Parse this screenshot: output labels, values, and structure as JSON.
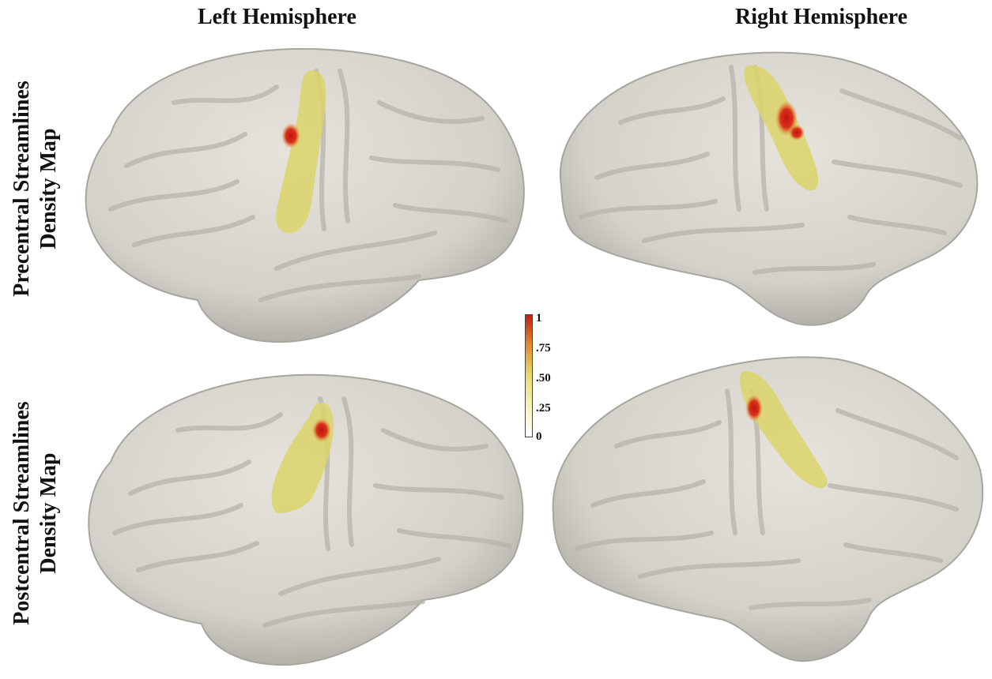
{
  "columns": {
    "left": "Left Hemisphere",
    "right": "Right Hemisphere"
  },
  "rows": {
    "top_line1": "Precentral Streamlines",
    "top_line2": "Density Map",
    "bottom_line1": "Postcentral Streamlines",
    "bottom_line2": "Density Map"
  },
  "colorbar": {
    "ticks": [
      "1",
      ".75",
      ".50",
      ".25",
      "0"
    ],
    "colors": {
      "high": "#c41d14",
      "mid_high": "#e68a2a",
      "mid": "#e9dc6d",
      "low": "#f6f3b9",
      "zero": "#ffffff"
    }
  },
  "colors": {
    "brain_surface": "#d9d6cf",
    "brain_shadow": "#a8a59e",
    "overlay_yellow": "#dcd46a",
    "overlay_red": "#d4231a"
  }
}
